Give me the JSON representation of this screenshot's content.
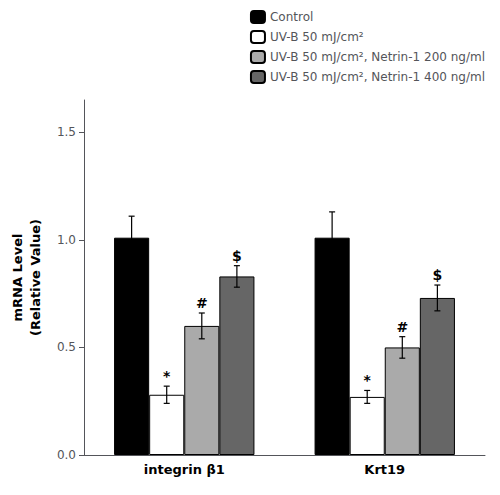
{
  "chart_data": {
    "type": "bar",
    "categories": [
      "integrin β1",
      "Krt19"
    ],
    "series": [
      {
        "name": "Control",
        "color": "#000000",
        "values": [
          1.01,
          1.01
        ],
        "errors": [
          0.1,
          0.12
        ]
      },
      {
        "name": "UV-B 50 mJ/cm²",
        "color": "#ffffff",
        "values": [
          0.28,
          0.27
        ],
        "errors": [
          0.04,
          0.03
        ],
        "annotations": [
          "*",
          "*"
        ]
      },
      {
        "name": "UV-B 50 mJ/cm², Netrin-1 200 ng/ml",
        "color": "#aaaaaa",
        "values": [
          0.6,
          0.5
        ],
        "errors": [
          0.06,
          0.05
        ],
        "annotations": [
          "#",
          "#"
        ]
      },
      {
        "name": "UV-B 50 mJ/cm², Netrin-1 400 ng/ml",
        "color": "#666666",
        "values": [
          0.83,
          0.73
        ],
        "errors": [
          0.05,
          0.06
        ],
        "annotations": [
          "$",
          "$"
        ]
      }
    ],
    "ylabel": "mRNA Level\n(Relative Value)",
    "ylim": [
      0,
      1.65
    ],
    "yticks": [
      {
        "value": 0,
        "label": "0.0"
      },
      0.5,
      {
        "value": 1.0,
        "label": "1.0"
      },
      1.5
    ],
    "grid": false,
    "legend": "upper right"
  }
}
